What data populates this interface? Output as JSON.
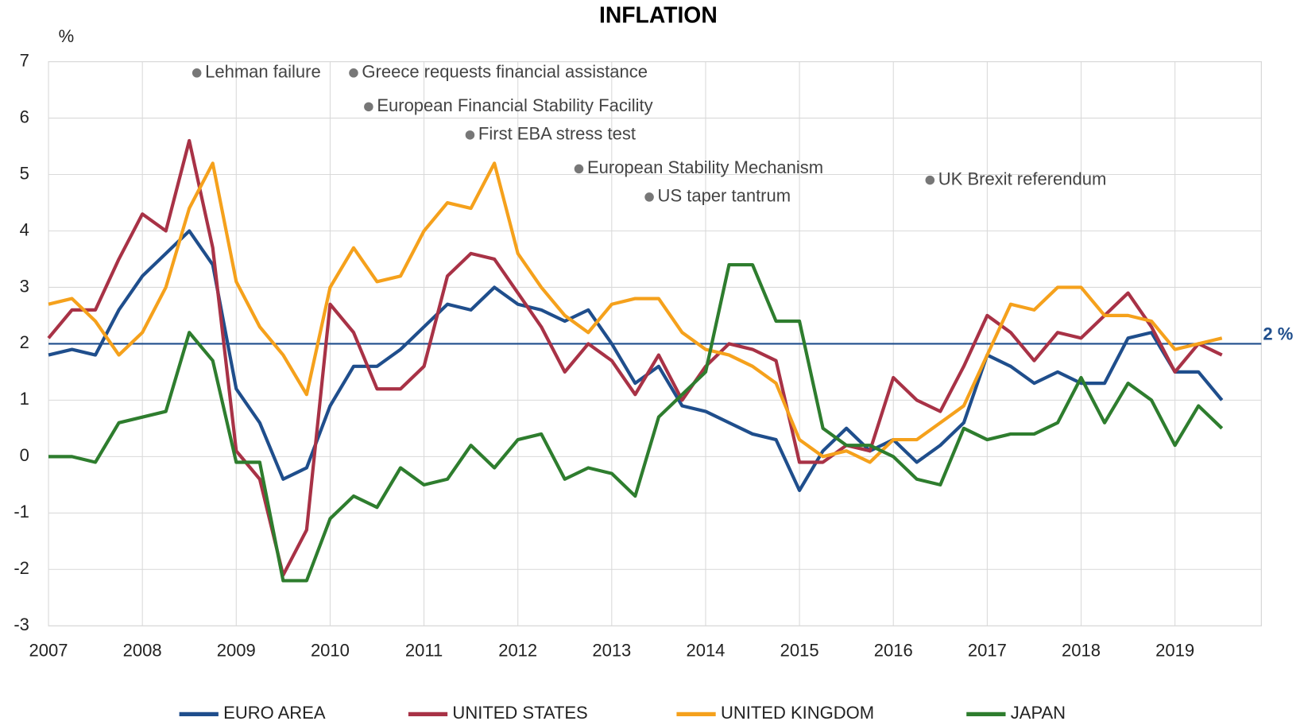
{
  "chart_data": {
    "type": "line",
    "title": "INFLATION",
    "y_unit": "%",
    "x": [
      2007,
      2007.25,
      2007.5,
      2007.75,
      2008,
      2008.25,
      2008.5,
      2008.75,
      2009,
      2009.25,
      2009.5,
      2009.75,
      2010,
      2010.25,
      2010.5,
      2010.75,
      2011,
      2011.25,
      2011.5,
      2011.75,
      2012,
      2012.25,
      2012.5,
      2012.75,
      2013,
      2013.25,
      2013.5,
      2013.75,
      2014,
      2014.25,
      2014.5,
      2014.75,
      2015,
      2015.25,
      2015.5,
      2015.75,
      2016,
      2016.25,
      2016.5,
      2016.75,
      2017,
      2017.25,
      2017.5,
      2017.75,
      2018,
      2018.25,
      2018.5,
      2018.75,
      2019,
      2019.25,
      2019.5
    ],
    "xlim": [
      2007,
      2019.92
    ],
    "xticks": [
      2007,
      2008,
      2009,
      2010,
      2011,
      2012,
      2013,
      2014,
      2015,
      2016,
      2017,
      2018,
      2019
    ],
    "ylim": [
      -3,
      7
    ],
    "yticks": [
      -3,
      -2,
      -1,
      0,
      1,
      2,
      3,
      4,
      5,
      6,
      7
    ],
    "grid": true,
    "legend": "bottom",
    "series": [
      {
        "name": "EURO AREA",
        "color": "#1f4e8c",
        "values": [
          1.8,
          1.9,
          1.8,
          2.6,
          3.2,
          3.6,
          4.0,
          3.4,
          1.2,
          0.6,
          -0.4,
          -0.2,
          0.9,
          1.6,
          1.6,
          1.9,
          2.3,
          2.7,
          2.6,
          3.0,
          2.7,
          2.6,
          2.4,
          2.6,
          2.0,
          1.3,
          1.6,
          0.9,
          0.8,
          0.6,
          0.4,
          0.3,
          -0.6,
          0.1,
          0.5,
          0.1,
          0.3,
          -0.1,
          0.2,
          0.6,
          1.8,
          1.6,
          1.3,
          1.5,
          1.3,
          1.3,
          2.1,
          2.2,
          1.5,
          1.5,
          1.0
        ]
      },
      {
        "name": "UNITED STATES",
        "color": "#a83246",
        "values": [
          2.1,
          2.6,
          2.6,
          3.5,
          4.3,
          4.0,
          5.6,
          3.7,
          0.1,
          -0.4,
          -2.1,
          -1.3,
          2.7,
          2.2,
          1.2,
          1.2,
          1.6,
          3.2,
          3.6,
          3.5,
          2.9,
          2.3,
          1.5,
          2.0,
          1.7,
          1.1,
          1.8,
          1.0,
          1.6,
          2.0,
          1.9,
          1.7,
          -0.1,
          -0.1,
          0.2,
          0.1,
          1.4,
          1.0,
          0.8,
          1.6,
          2.5,
          2.2,
          1.7,
          2.2,
          2.1,
          2.5,
          2.9,
          2.3,
          1.5,
          2.0,
          1.8
        ]
      },
      {
        "name": "UNITED KINGDOM",
        "color": "#f5a11c",
        "values": [
          2.7,
          2.8,
          2.4,
          1.8,
          2.2,
          3.0,
          4.4,
          5.2,
          3.1,
          2.3,
          1.8,
          1.1,
          3.0,
          3.7,
          3.1,
          3.2,
          4.0,
          4.5,
          4.4,
          5.2,
          3.6,
          3.0,
          2.5,
          2.2,
          2.7,
          2.8,
          2.8,
          2.2,
          1.9,
          1.8,
          1.6,
          1.3,
          0.3,
          0.0,
          0.1,
          -0.1,
          0.3,
          0.3,
          0.6,
          0.9,
          1.8,
          2.7,
          2.6,
          3.0,
          3.0,
          2.5,
          2.5,
          2.4,
          1.9,
          2.0,
          2.1
        ]
      },
      {
        "name": "JAPAN",
        "color": "#2e7d2e",
        "values": [
          0.0,
          0.0,
          -0.1,
          0.6,
          0.7,
          0.8,
          2.2,
          1.7,
          -0.1,
          -0.1,
          -2.2,
          -2.2,
          -1.1,
          -0.7,
          -0.9,
          -0.2,
          -0.5,
          -0.4,
          0.2,
          -0.2,
          0.3,
          0.4,
          -0.4,
          -0.2,
          -0.3,
          -0.7,
          0.7,
          1.1,
          1.5,
          3.4,
          3.4,
          2.4,
          2.4,
          0.5,
          0.2,
          0.2,
          0.0,
          -0.4,
          -0.5,
          0.5,
          0.3,
          0.4,
          0.4,
          0.6,
          1.4,
          0.6,
          1.3,
          1.0,
          0.2,
          0.9,
          0.5
        ]
      }
    ],
    "reference_line": {
      "value": 2,
      "label": "2 %",
      "color": "#1f4e8c"
    },
    "annotations": [
      {
        "text": "Lehman failure",
        "x": 2008.58,
        "y": 6.8
      },
      {
        "text": "Greece requests financial assistance",
        "x": 2010.25,
        "y": 6.8
      },
      {
        "text": "European Financial Stability Facility",
        "x": 2010.41,
        "y": 6.2
      },
      {
        "text": "First EBA stress test",
        "x": 2011.49,
        "y": 5.7
      },
      {
        "text": "European Stability Mechanism",
        "x": 2012.65,
        "y": 5.1
      },
      {
        "text": "US taper tantrum",
        "x": 2013.4,
        "y": 4.6
      },
      {
        "text": "UK Brexit referendum",
        "x": 2016.39,
        "y": 4.9
      }
    ]
  }
}
